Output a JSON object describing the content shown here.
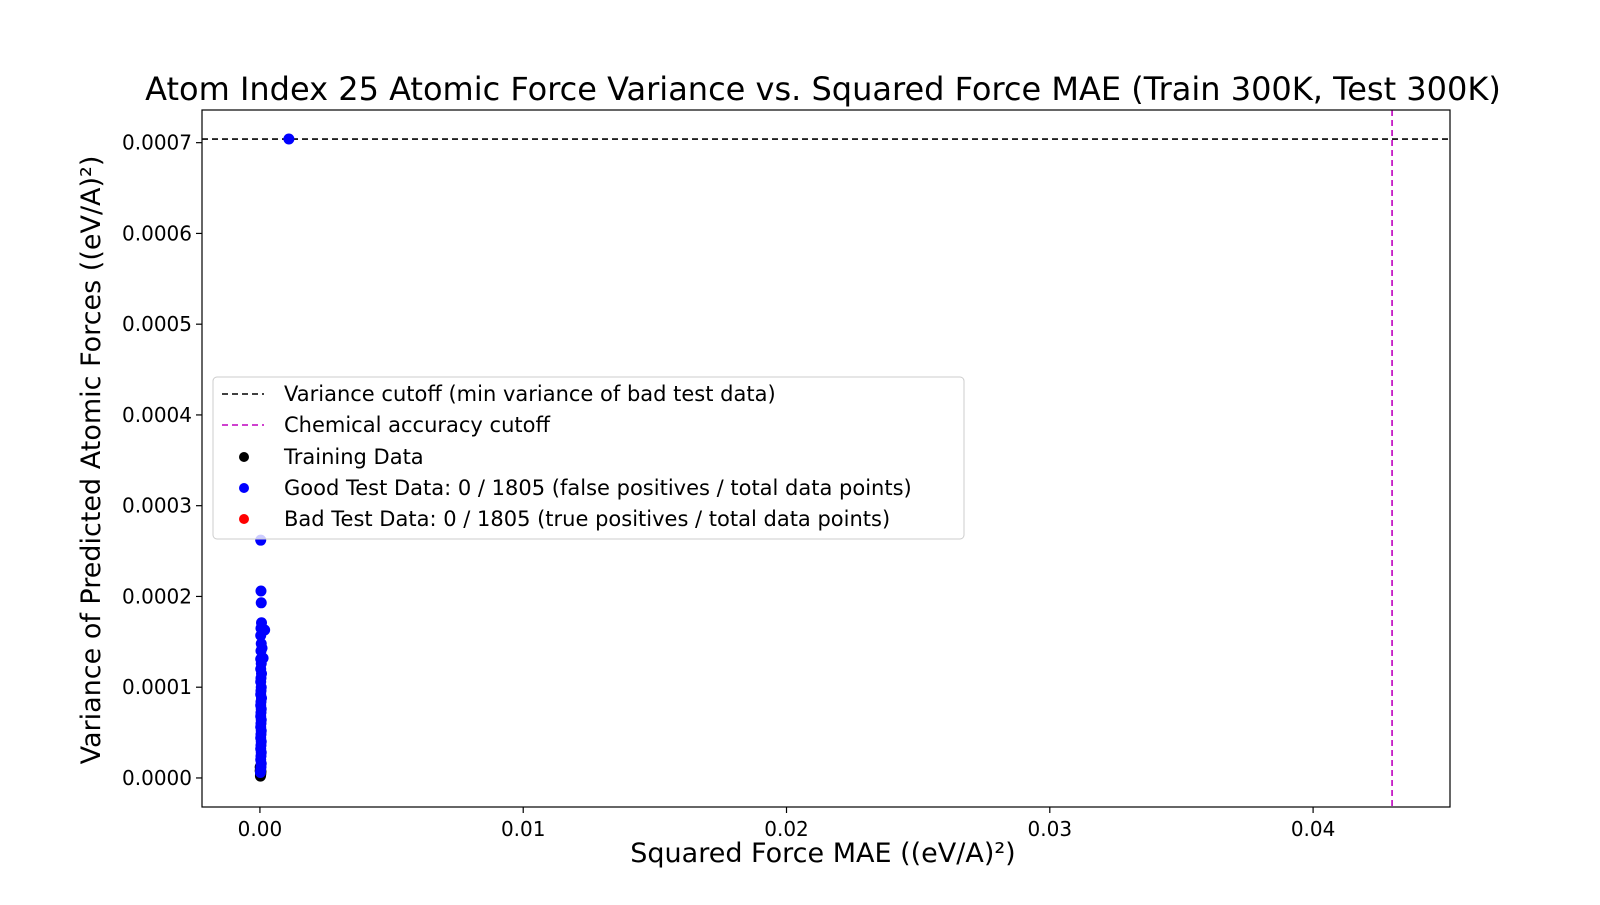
{
  "chart_data": {
    "type": "scatter",
    "title": "Atom Index 25 Atomic Force Variance vs. Squared Force MAE (Train 300K, Test 300K)",
    "xlabel": "Squared Force MAE ((eV/A)²)",
    "ylabel": "Variance of Predicted Atomic Forces ((eV/A)²)",
    "xlim": [
      -0.0022,
      0.0452
    ],
    "ylim": [
      -3.2e-05,
      0.000736
    ],
    "x_ticks": [
      0.0,
      0.01,
      0.02,
      0.03,
      0.04
    ],
    "x_tick_labels": [
      "0.00",
      "0.01",
      "0.02",
      "0.03",
      "0.04"
    ],
    "y_ticks": [
      0.0,
      0.0001,
      0.0002,
      0.0003,
      0.0004,
      0.0005,
      0.0006,
      0.0007
    ],
    "y_tick_labels": [
      "0.0000",
      "0.0001",
      "0.0002",
      "0.0003",
      "0.0004",
      "0.0005",
      "0.0006",
      "0.0007"
    ],
    "grid": false,
    "legend_position": "center-left",
    "reference_lines": [
      {
        "orientation": "horizontal",
        "value": 0.000704,
        "label": "Variance cutoff (min variance of bad test data)",
        "color": "#000000",
        "style": "dashed"
      },
      {
        "orientation": "vertical",
        "value": 0.043,
        "label": "Chemical accuracy cutoff",
        "color": "#bf00bf",
        "style": "dashed"
      }
    ],
    "series": [
      {
        "name": "Training Data",
        "color": "#000000",
        "points": [
          [
            2e-05,
            2e-06
          ],
          [
            3e-05,
            5e-06
          ],
          [
            1e-05,
            8e-06
          ],
          [
            2e-05,
            1e-05
          ],
          [
            3e-05,
            4e-06
          ],
          [
            1e-05,
            1.2e-05
          ],
          [
            2e-05,
            3e-06
          ],
          [
            4e-05,
            7e-06
          ]
        ]
      },
      {
        "name": "Good Test Data: 0 / 1805 (false positives / total data points)",
        "color": "#0000ff",
        "points": [
          [
            0.0011,
            0.000704
          ],
          [
            3e-05,
            0.000262
          ],
          [
            4e-05,
            0.000206
          ],
          [
            5e-05,
            0.000193
          ],
          [
            6e-05,
            0.000171
          ],
          [
            0.00018,
            0.000163
          ],
          [
            4e-05,
            0.000165
          ],
          [
            3e-05,
            0.000157
          ],
          [
            5e-05,
            0.000148
          ],
          [
            8e-05,
            0.000143
          ],
          [
            4e-05,
            0.00014
          ],
          [
            0.00012,
            0.000132
          ],
          [
            3e-05,
            0.000131
          ],
          [
            5e-05,
            0.000126
          ],
          [
            3e-05,
            0.00012
          ],
          [
            6e-05,
            0.000115
          ],
          [
            4e-05,
            0.00011
          ],
          [
            3e-05,
            0.000106
          ],
          [
            5e-05,
            0.0001
          ],
          [
            4e-05,
            9.6e-05
          ],
          [
            3e-05,
            9.2e-05
          ],
          [
            6e-05,
            8.8e-05
          ],
          [
            4e-05,
            8.4e-05
          ],
          [
            3e-05,
            8e-05
          ],
          [
            5e-05,
            7.6e-05
          ],
          [
            4e-05,
            7.2e-05
          ],
          [
            3e-05,
            6.8e-05
          ],
          [
            5e-05,
            6.4e-05
          ],
          [
            4e-05,
            6e-05
          ],
          [
            3e-05,
            5.6e-05
          ],
          [
            5e-05,
            5.2e-05
          ],
          [
            4e-05,
            4.8e-05
          ],
          [
            3e-05,
            4.4e-05
          ],
          [
            5e-05,
            4e-05
          ],
          [
            4e-05,
            3.6e-05
          ],
          [
            3e-05,
            3.2e-05
          ],
          [
            5e-05,
            2.8e-05
          ],
          [
            4e-05,
            2.4e-05
          ],
          [
            3e-05,
            2e-05
          ],
          [
            5e-05,
            1.6e-05
          ],
          [
            4e-05,
            1.2e-05
          ],
          [
            3e-05,
            9e-06
          ],
          [
            2e-05,
            6e-06
          ]
        ]
      },
      {
        "name": "Bad Test Data: 0 / 1805 (true positives / total data points)",
        "color": "#ff0000",
        "points": []
      }
    ]
  }
}
